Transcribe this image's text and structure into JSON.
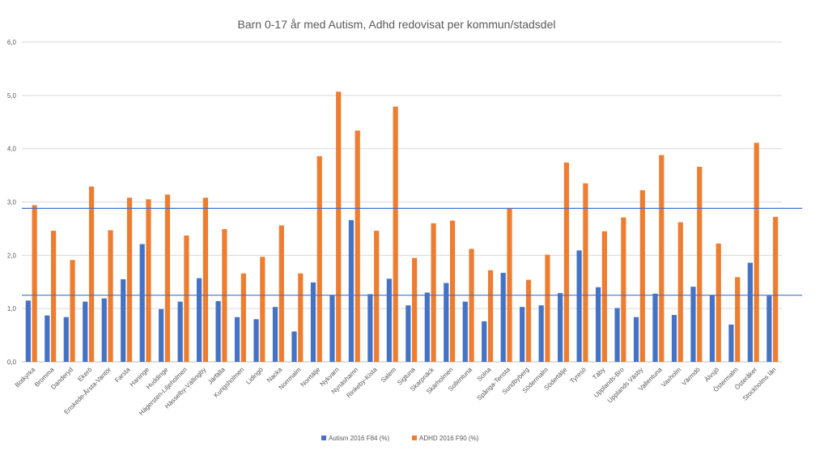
{
  "chart_data": {
    "type": "bar",
    "title": "Barn 0-17 år med Autism, Adhd redovisat per kommun/stadsdel",
    "xlabel": "",
    "ylabel": "",
    "ylim": [
      0,
      6
    ],
    "yticks": [
      "0,0",
      "1,0",
      "2,0",
      "3,0",
      "4,0",
      "5,0",
      "6,0"
    ],
    "grid": true,
    "legend_position": "bottom",
    "categories": [
      "Botkyrka",
      "Bromma",
      "Danderyd",
      "Ekerö",
      "Enskede-Årsta-Vantör",
      "Farsta",
      "Haninge",
      "Huddinge",
      "Hägersten-Liljeholmen",
      "Hässelby-Vällingby",
      "Järfälla",
      "Kungsholmen",
      "Lidingö",
      "Nacka",
      "Norrmalm",
      "Norrtälje",
      "Nykvarn",
      "Nynäshamn",
      "Rinkeby-Kista",
      "Salem",
      "Sigtuna",
      "Skarpnäck",
      "Skärholmen",
      "Sollentuna",
      "Solna",
      "Spånga-Tensta",
      "Sundbyberg",
      "Södermalm",
      "Södertälje",
      "Tyresö",
      "Täby",
      "Upplands-Bro",
      "Upplands Väsby",
      "Vallentuna",
      "Vaxholm",
      "Värmdö",
      "Älvsjö",
      "Östermalm",
      "Österåker",
      "Stockholms län"
    ],
    "series": [
      {
        "name": "Autism 2016 F84 (%)",
        "color": "#4472c4",
        "values": [
          1.15,
          0.87,
          0.84,
          1.13,
          1.19,
          1.55,
          2.21,
          0.99,
          1.13,
          1.57,
          1.14,
          0.84,
          0.8,
          1.03,
          0.57,
          1.49,
          1.25,
          2.66,
          1.27,
          1.56,
          1.06,
          1.3,
          1.48,
          1.13,
          0.76,
          1.67,
          1.03,
          1.06,
          1.29,
          2.09,
          1.4,
          1.01,
          0.84,
          1.28,
          0.88,
          1.41,
          1.25,
          0.7,
          1.86,
          1.24
        ]
      },
      {
        "name": "ADHD 2016 F90 (%)",
        "color": "#ed7d31",
        "values": [
          2.94,
          2.46,
          1.91,
          3.29,
          2.47,
          3.08,
          3.05,
          3.14,
          2.37,
          3.08,
          2.49,
          1.66,
          1.97,
          2.56,
          1.66,
          3.86,
          5.07,
          4.34,
          2.46,
          4.79,
          1.95,
          2.6,
          2.65,
          2.12,
          1.72,
          2.88,
          1.54,
          2.01,
          3.74,
          3.35,
          2.45,
          2.71,
          3.22,
          3.88,
          2.62,
          3.66,
          2.22,
          1.59,
          4.11,
          2.72
        ]
      }
    ],
    "reference_lines": [
      {
        "value": 2.88,
        "color": "#4472c4"
      },
      {
        "value": 1.25,
        "color": "#4472c4"
      }
    ]
  }
}
